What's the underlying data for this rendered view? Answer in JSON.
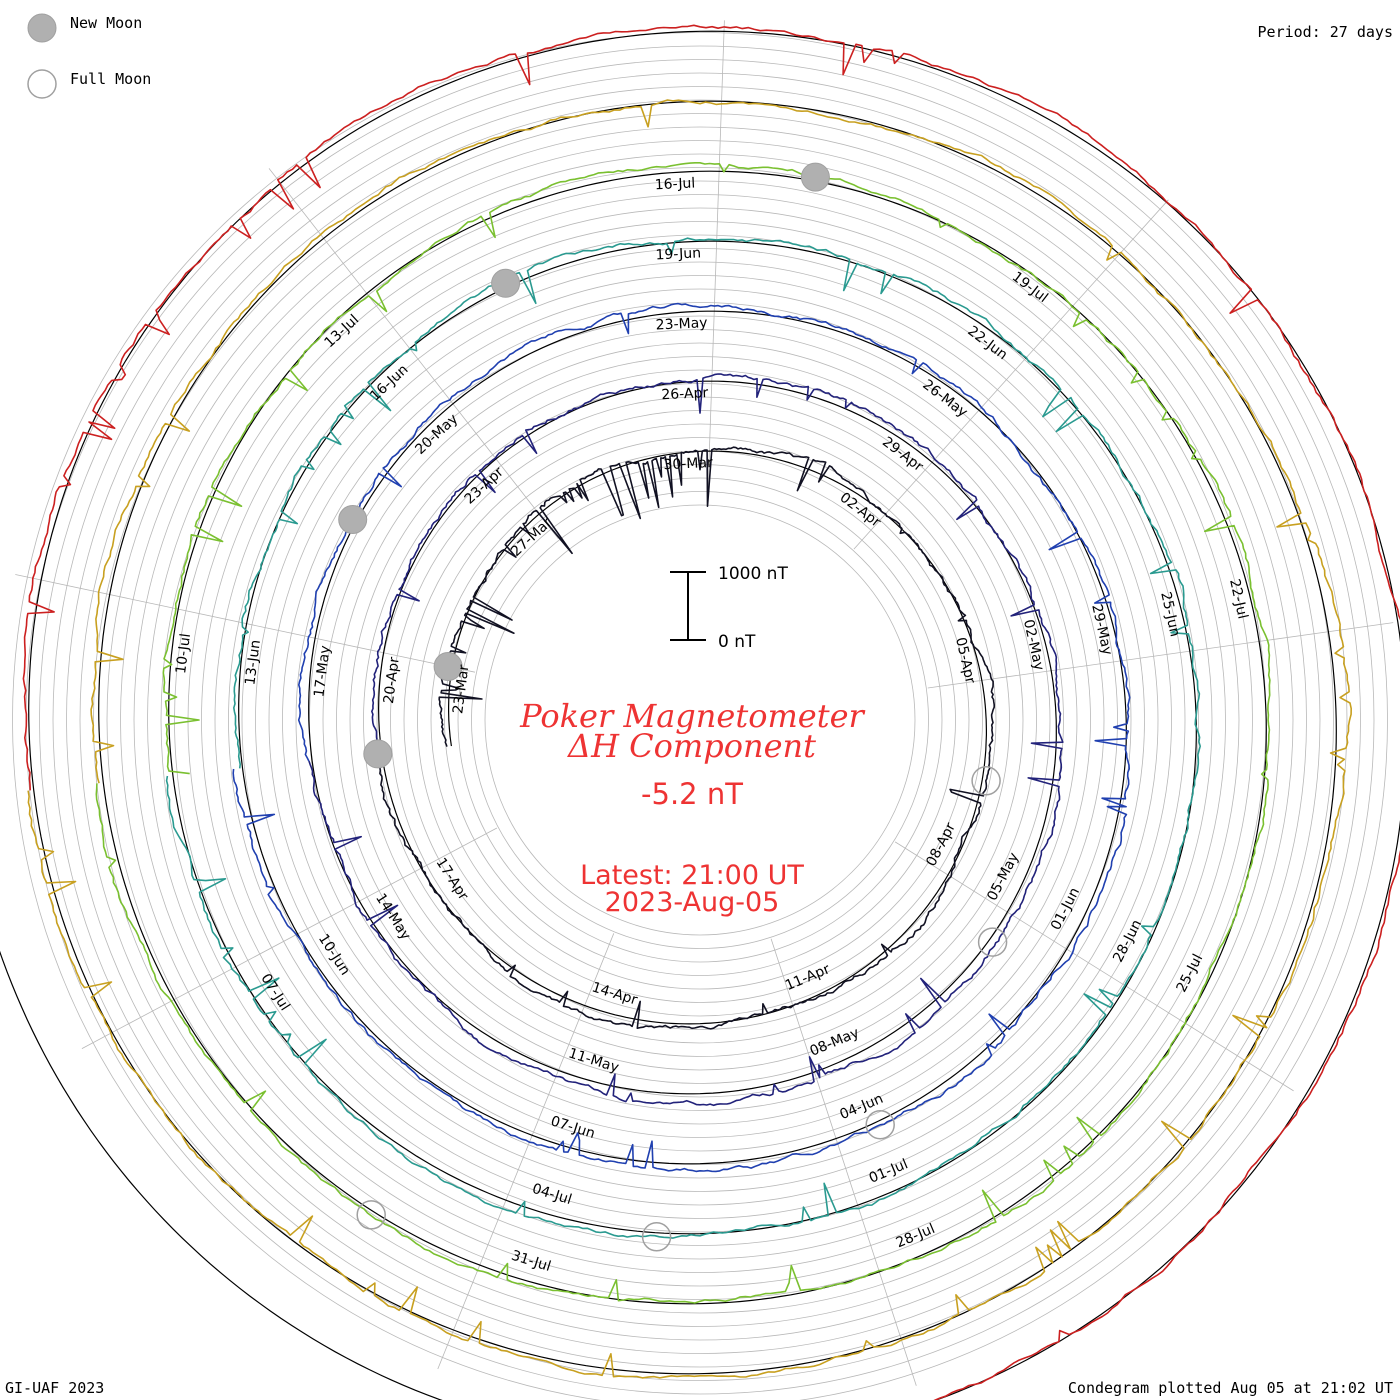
{
  "legend": {
    "new_moon": "New Moon",
    "full_moon": "Full Moon"
  },
  "period_label": "Period: 27 days",
  "footer_left": "GI-UAF 2023",
  "footer_right": "Condegram plotted Aug 05 at 21:02 UT",
  "scale_bar": {
    "top_label": "1000 nT",
    "bottom_label": "0 nT"
  },
  "title": {
    "line1": "Poker Magnetometer",
    "line2": "ΔH Component",
    "current_value": "-5.2 nT",
    "latest_line1": "Latest: 21:00 UT",
    "latest_line2": "2023-Aug-05"
  },
  "colors": {
    "title_red": "#ee3333",
    "grid": "#b8b8b8",
    "baseline": "#000000",
    "moon_fill": "#b0b0b0",
    "moon_stroke": "#a0a0a0"
  },
  "chart_data": {
    "type": "line",
    "plot_type": "condegram spiral (27-day period)",
    "period_days": 27,
    "units": "nT",
    "scale_bar_nT": [
      0,
      1000
    ],
    "series": [
      {
        "color": "#111122",
        "dates": [
          "23-Mar",
          "27-Mar",
          "30-Mar",
          "02-Apr",
          "05-Apr",
          "08-Apr",
          "11-Apr",
          "14-Apr",
          "17-Apr"
        ]
      },
      {
        "color": "#22227a",
        "dates": [
          "20-Apr",
          "23-Apr",
          "26-Apr",
          "29-Apr",
          "02-May",
          "05-May",
          "08-May",
          "11-May",
          "14-May"
        ]
      },
      {
        "color": "#2040b0",
        "dates": [
          "17-May",
          "20-May",
          "23-May",
          "26-May",
          "29-May",
          "01-Jun",
          "04-Jun",
          "07-Jun",
          "10-Jun"
        ]
      },
      {
        "color": "#2a9a90",
        "dates": [
          "13-Jun",
          "16-Jun",
          "19-Jun",
          "22-Jun",
          "25-Jun",
          "28-Jun",
          "01-Jul",
          "04-Jul",
          "07-Jul"
        ]
      },
      {
        "color": "#7ac030",
        "dates": [
          "10-Jul",
          "13-Jul",
          "16-Jul",
          "19-Jul",
          "22-Jul",
          "25-Jul",
          "28-Jul",
          "31-Jul"
        ]
      },
      {
        "color": "#c8a020",
        "dates": []
      },
      {
        "color": "#cc2020",
        "dates": []
      }
    ],
    "new_moons": [
      "20-Mar",
      "20-Apr",
      "19-May",
      "18-Jun",
      "17-Jul"
    ],
    "full_moons": [
      "06-Apr",
      "05-May",
      "04-Jun",
      "03-Jul",
      "01-Aug"
    ]
  }
}
